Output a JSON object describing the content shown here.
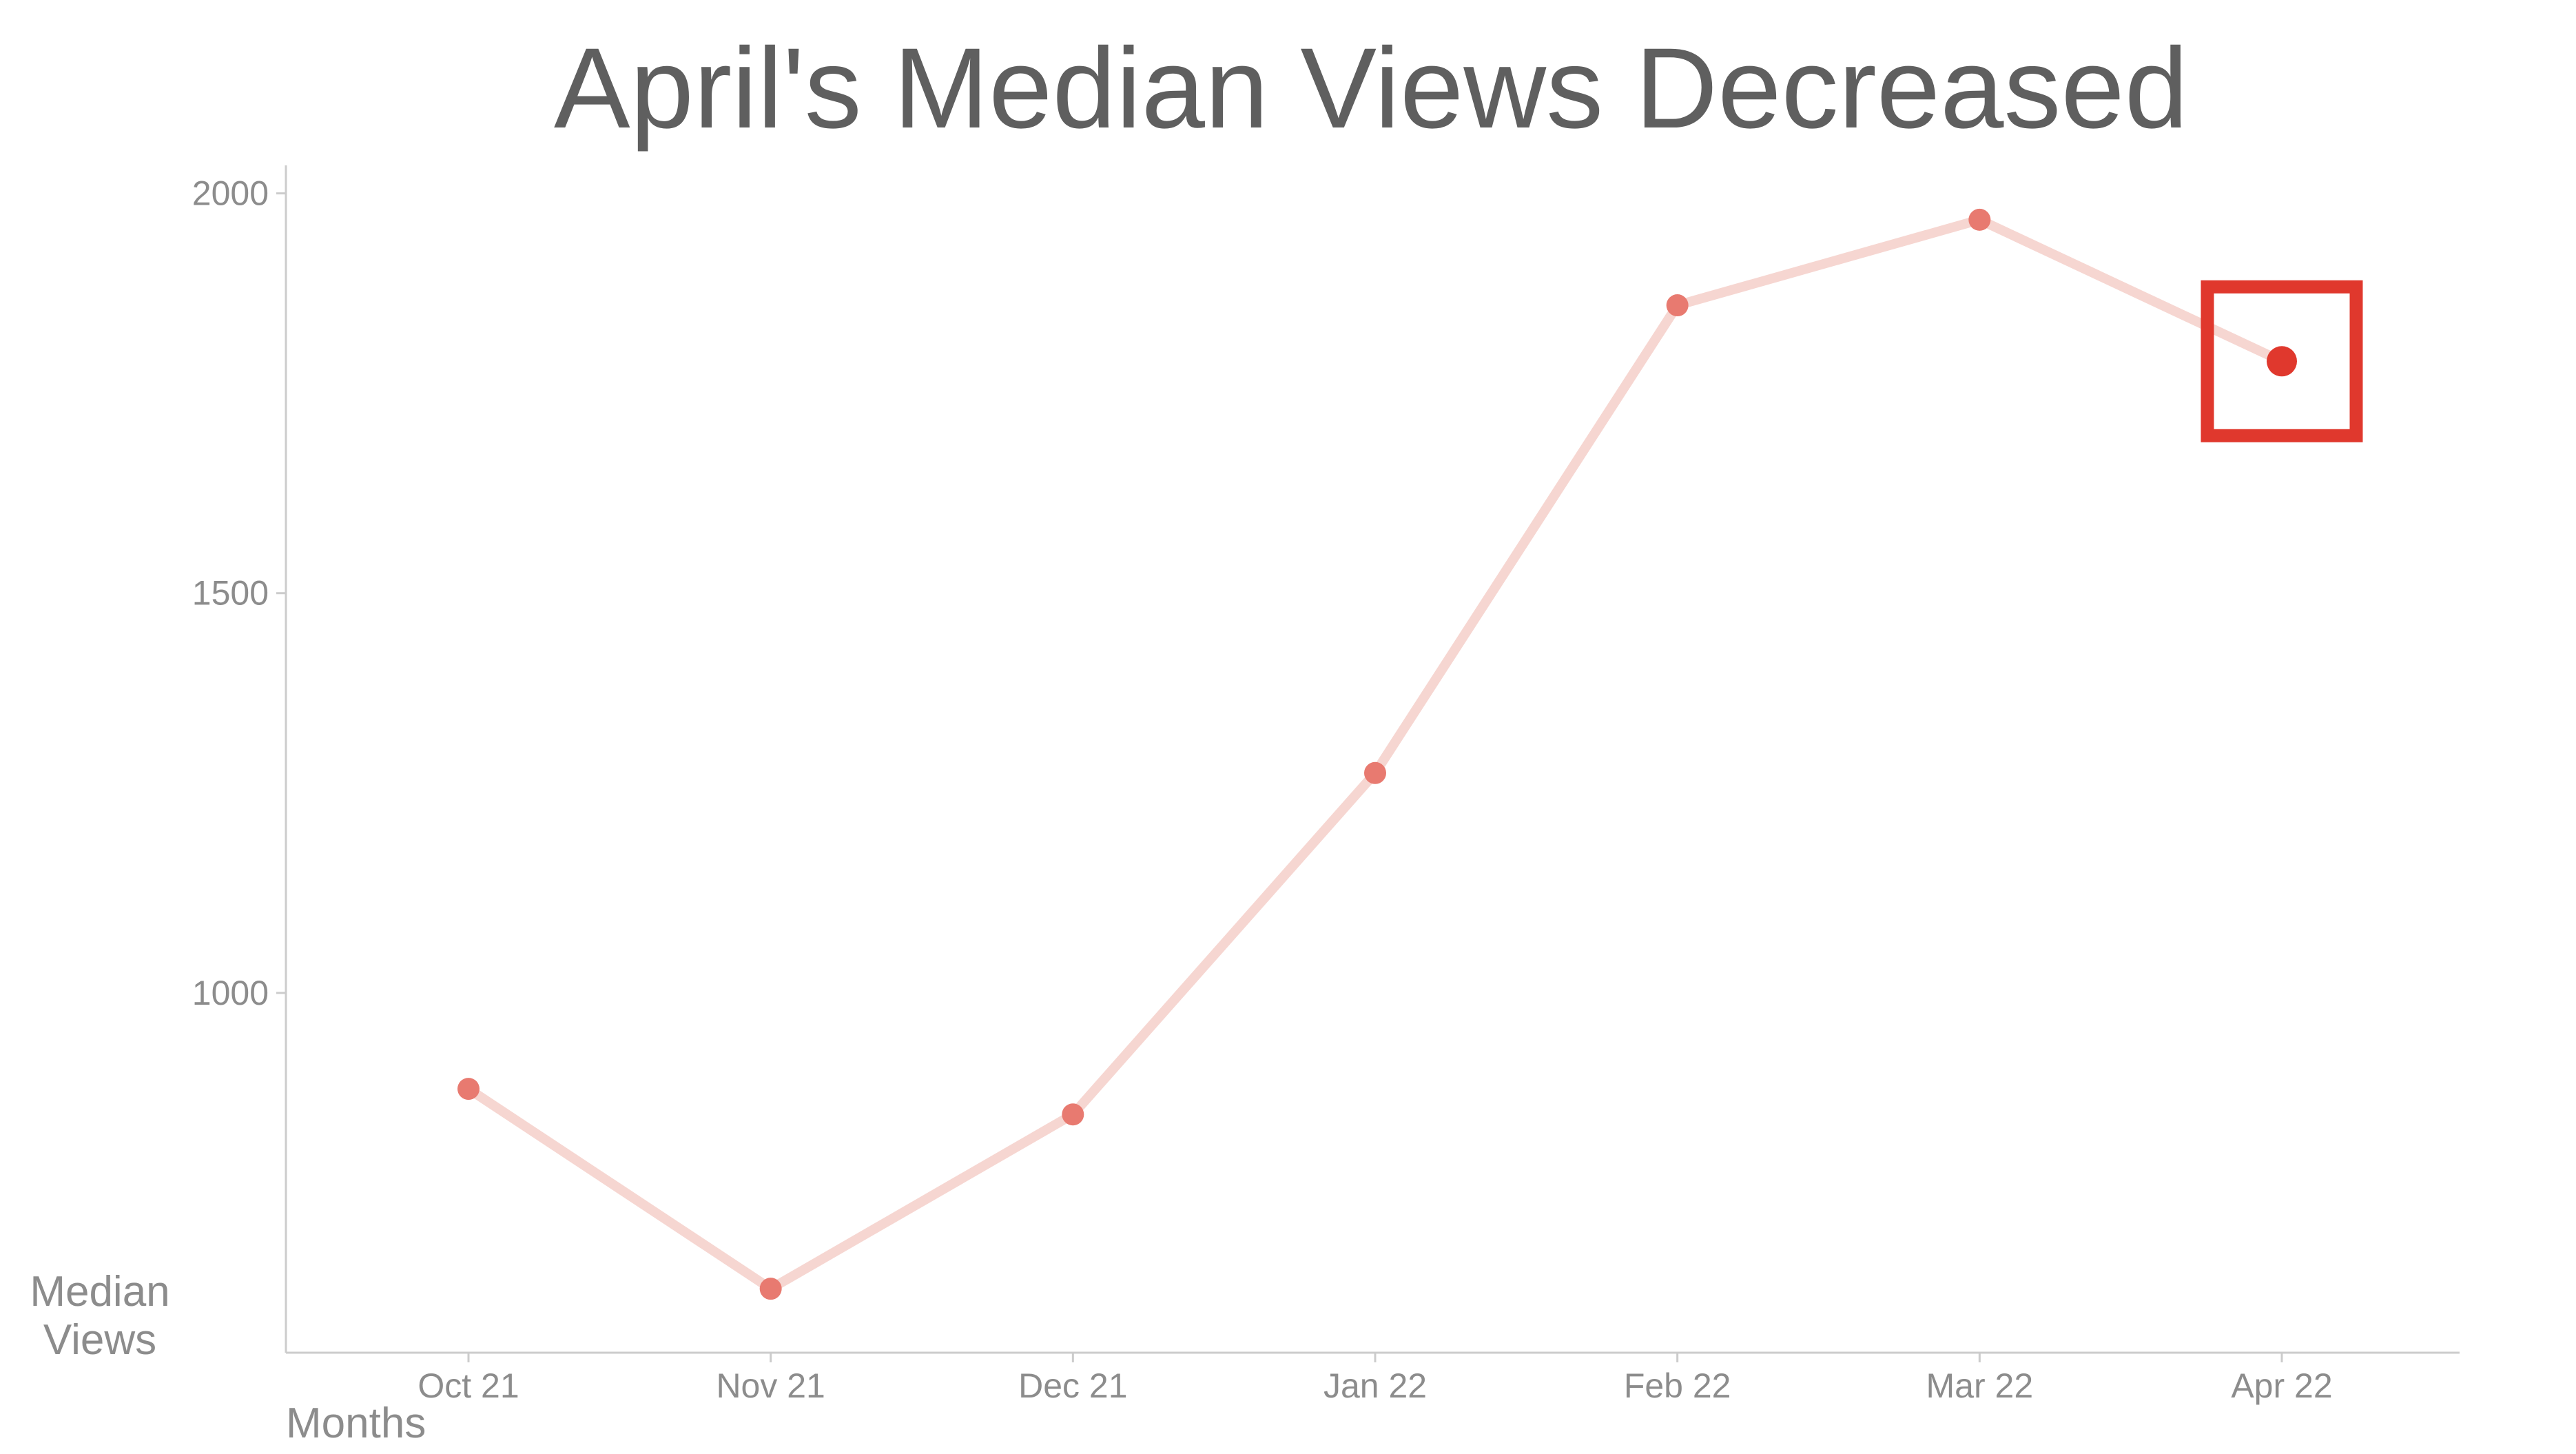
{
  "chart_data": {
    "type": "line",
    "title": "April's Median Views Decreased",
    "xlabel": "Months",
    "ylabel": "Median Views",
    "ylabel_lines": [
      "Median",
      "Views"
    ],
    "categories": [
      "Oct 21",
      "Nov 21",
      "Dec 21",
      "Jan 22",
      "Feb 22",
      "Mar 22",
      "Apr 22"
    ],
    "series": [
      {
        "values": [
          880,
          630,
          848,
          1275,
          1860,
          1967,
          1790
        ]
      }
    ],
    "ylim": [
      550,
      2035
    ],
    "yticks": [
      1000,
      1500,
      2000
    ],
    "grid": false,
    "highlight_index": 6,
    "colors": {
      "line": "#f6d6d1",
      "point": "#e87a70",
      "highlight": "#e0382d",
      "title": "#5f5f5f",
      "labels": "#8c8c8c",
      "axis": "#cccccc"
    }
  }
}
